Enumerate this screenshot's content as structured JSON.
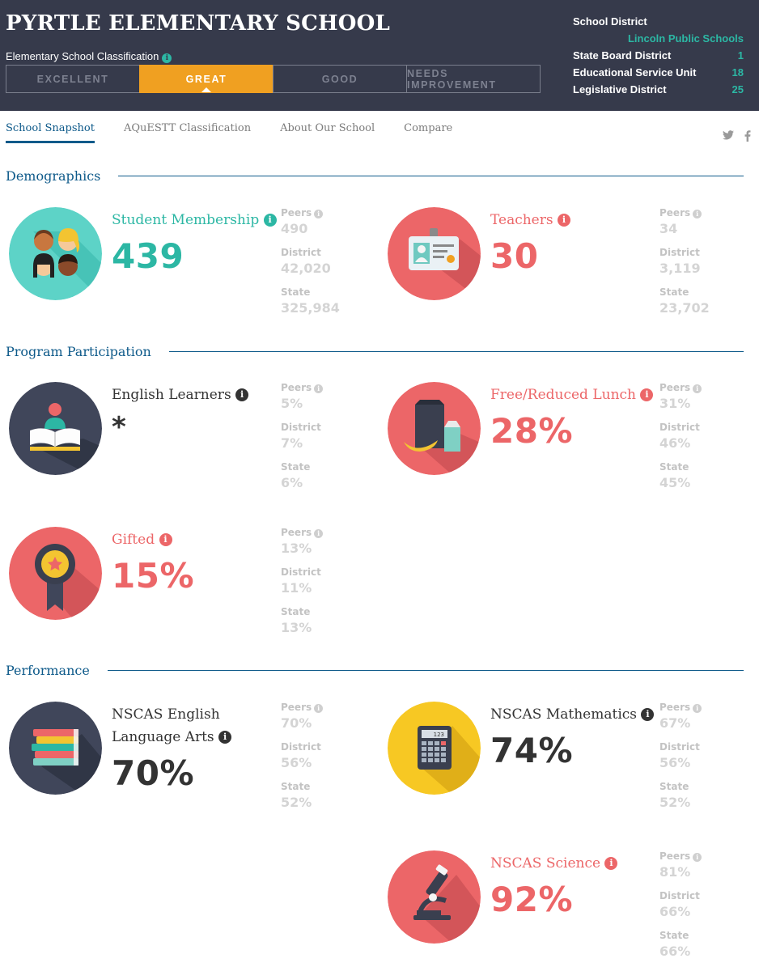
{
  "header": {
    "school_name": "PYRTLE ELEMENTARY SCHOOL",
    "classification_label": "Elementary School Classification",
    "ratings": [
      "EXCELLENT",
      "GREAT",
      "GOOD",
      "NEEDS IMPROVEMENT"
    ],
    "active_rating": "GREAT",
    "district_label": "School District",
    "district_value": "Lincoln Public Schools",
    "state_board_label": "State Board District",
    "state_board_value": "1",
    "esu_label": "Educational Service Unit",
    "esu_value": "18",
    "legislative_label": "Legislative District",
    "legislative_value": "25"
  },
  "nav": {
    "tabs": [
      "School Snapshot",
      "AQuESTT Classification",
      "About Our School",
      "Compare"
    ],
    "active_tab": "School Snapshot"
  },
  "sections": {
    "demographics": "Demographics",
    "program": "Program Participation",
    "performance": "Performance"
  },
  "comparison_labels": {
    "peers": "Peers",
    "district": "District",
    "state": "State"
  },
  "info_glyph": "i",
  "stats": {
    "student_membership": {
      "label": "Student Membership",
      "value": "439",
      "peers": "490",
      "district": "42,020",
      "state": "325,984"
    },
    "teachers": {
      "label": "Teachers",
      "value": "30",
      "peers": "34",
      "district": "3,119",
      "state": "23,702"
    },
    "english_learners": {
      "label": "English Learners",
      "value": "*",
      "peers": "5%",
      "district": "7%",
      "state": "6%"
    },
    "free_reduced_lunch": {
      "label": "Free/Reduced Lunch",
      "value": "28%",
      "peers": "31%",
      "district": "46%",
      "state": "45%"
    },
    "gifted": {
      "label": "Gifted",
      "value": "15%",
      "peers": "13%",
      "district": "11%",
      "state": "13%"
    },
    "nscas_ela": {
      "label": "NSCAS English Language Arts",
      "value": "70%",
      "peers": "70%",
      "district": "56%",
      "state": "52%"
    },
    "nscas_math": {
      "label": "NSCAS Mathematics",
      "value": "74%",
      "peers": "67%",
      "district": "56%",
      "state": "52%"
    },
    "nscas_science": {
      "label": "NSCAS Science",
      "value": "92%",
      "peers": "81%",
      "district": "66%",
      "state": "66%"
    }
  },
  "calculator_display": "123",
  "icons": {
    "info": "info-icon",
    "twitter": "twitter-icon",
    "facebook": "facebook-icon",
    "students": "students-icon",
    "teacher": "id-badge-icon",
    "reader": "reader-book-icon",
    "lunch": "lunch-icon",
    "award": "award-ribbon-icon",
    "books": "books-stack-icon",
    "calculator": "calculator-icon",
    "microscope": "microscope-icon"
  },
  "colors": {
    "header_bg": "#363a4b",
    "accent_teal": "#2cb7a4",
    "accent_coral": "#ec6668",
    "accent_orange": "#f0a021",
    "accent_yellow": "#f7c823",
    "section_blue": "#0e5a8a",
    "dark_circle": "#40465a"
  }
}
